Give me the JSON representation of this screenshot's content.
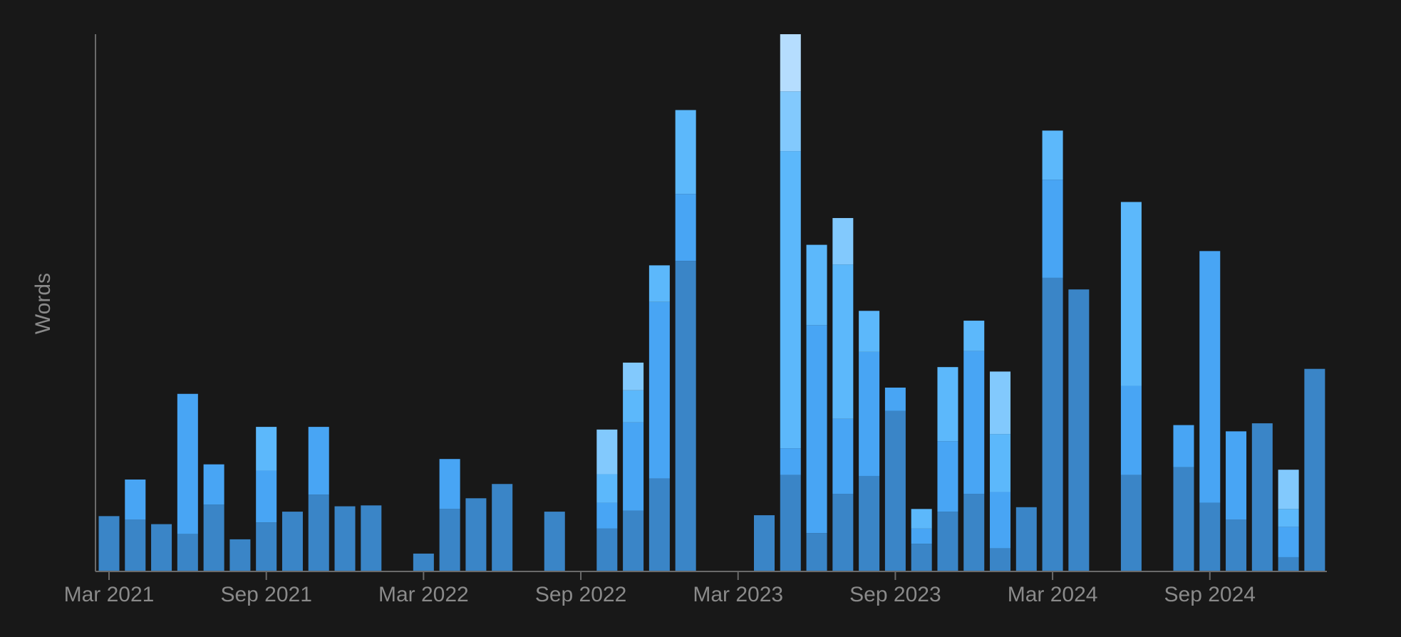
{
  "chart_data": {
    "type": "stacked_bar",
    "y_label": "Words",
    "categories": [
      "Mar 2021",
      null,
      null,
      null,
      null,
      null,
      "Sep 2021",
      null,
      null,
      null,
      null,
      null,
      "Mar 2022",
      null,
      null,
      null,
      null,
      null,
      "Sep 2022",
      null,
      null,
      null,
      null,
      null,
      "Mar 2023",
      null,
      null,
      null,
      null,
      null,
      "Sep 2023",
      null,
      null,
      null,
      null,
      null,
      "Mar 2024",
      null,
      null,
      null,
      null,
      null,
      "Sep 2024",
      null,
      null,
      null,
      null
    ],
    "ylim": [
      0,
      602
    ],
    "series": [
      {
        "color": "#3a85c7",
        "values": [
          62,
          58,
          53,
          42,
          75,
          36,
          55,
          67,
          86,
          73,
          74,
          0,
          20,
          70,
          82,
          98,
          0,
          67,
          0,
          48,
          68,
          104,
          348,
          0,
          0,
          63,
          108,
          43,
          87,
          107,
          180,
          31,
          67,
          87,
          26,
          72,
          329,
          316,
          0,
          108,
          0,
          117,
          77,
          58,
          166,
          16,
          227
        ]
      },
      {
        "color": "#48a5f4",
        "values": [
          0,
          45,
          0,
          157,
          45,
          0,
          58,
          0,
          76,
          0,
          0,
          0,
          0,
          56,
          0,
          0,
          0,
          0,
          0,
          29,
          99,
          198,
          75,
          0,
          0,
          0,
          30,
          233,
          84,
          139,
          26,
          17,
          79,
          160,
          63,
          0,
          110,
          0,
          0,
          100,
          0,
          47,
          282,
          99,
          0,
          34,
          0
        ]
      },
      {
        "color": "#5cb8fb",
        "values": [
          0,
          0,
          0,
          0,
          0,
          0,
          49,
          0,
          0,
          0,
          0,
          0,
          0,
          0,
          0,
          0,
          0,
          0,
          0,
          32,
          36,
          41,
          94,
          0,
          0,
          0,
          333,
          90,
          173,
          46,
          0,
          22,
          83,
          34,
          65,
          0,
          55,
          0,
          0,
          206,
          0,
          0,
          0,
          0,
          0,
          20,
          0
        ]
      },
      {
        "color": "#82c9fd",
        "values": [
          0,
          0,
          0,
          0,
          0,
          0,
          0,
          0,
          0,
          0,
          0,
          0,
          0,
          0,
          0,
          0,
          0,
          0,
          0,
          50,
          31,
          0,
          0,
          0,
          0,
          0,
          67,
          0,
          52,
          0,
          0,
          0,
          0,
          0,
          70,
          0,
          0,
          0,
          0,
          0,
          0,
          0,
          0,
          0,
          0,
          44,
          0
        ]
      },
      {
        "color": "#b5ddfe",
        "values": [
          0,
          0,
          0,
          0,
          0,
          0,
          0,
          0,
          0,
          0,
          0,
          0,
          0,
          0,
          0,
          0,
          0,
          0,
          0,
          0,
          0,
          0,
          0,
          0,
          0,
          0,
          64,
          0,
          0,
          0,
          0,
          0,
          0,
          0,
          0,
          0,
          0,
          0,
          0,
          0,
          0,
          0,
          0,
          0,
          0,
          0,
          0
        ]
      }
    ]
  }
}
